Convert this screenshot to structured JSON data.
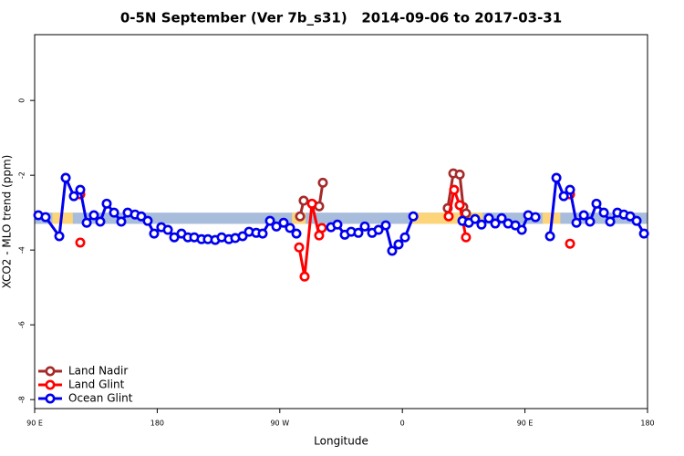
{
  "chart_data": {
    "type": "line",
    "title": "0-5N September (Ver 7b_s31)   2014-09-06 to 2017-03-31",
    "x_label": "Longitude",
    "y_label": "XCO2 - MLO trend (ppm)",
    "xlim": [
      90,
      540
    ],
    "ylim": [
      -8.24,
      1.76
    ],
    "xticks": [
      {
        "value": 90,
        "label": "90 E"
      },
      180,
      {
        "value": 270,
        "label": "90 W"
      },
      {
        "value": 360,
        "label": "0"
      },
      {
        "value": 450,
        "label": "90 E"
      },
      {
        "value": 540,
        "label": "180"
      }
    ],
    "yticks": [
      -8,
      -6,
      -4,
      -2,
      0
    ],
    "grid": false,
    "legend": "bottom-left",
    "band": {
      "range": [
        -3.0,
        -3.3
      ],
      "color": "#a8bcdc"
    },
    "highlight": {
      "color": "#fcd57a",
      "spans": [
        [
          103,
          118
        ],
        [
          279,
          289
        ],
        [
          366,
          419
        ],
        [
          463,
          476
        ]
      ]
    },
    "series": [
      {
        "name": "Land Nadir",
        "color": "#a52a2a",
        "x": [
          284.9,
          287.5,
          294.2,
          298.9,
          301.6,
          null,
          393.3,
          397.4,
          402.1,
          404.7,
          406.7
        ],
        "values": [
          -3.1,
          -2.68,
          -2.78,
          -2.83,
          -2.2,
          null,
          -2.88,
          -1.95,
          -1.98,
          -2.85,
          -3.02
        ]
      },
      {
        "name": "Land Glint",
        "color": "#ff0000",
        "x": [
          123.5,
          null,
          123.5,
          null,
          284.2,
          288.2,
          293.6,
          298.9,
          300.9,
          null,
          394.0,
          398.0,
          402.1,
          406.7,
          null,
          483.1,
          null,
          483.1
        ],
        "values": [
          -2.51,
          null,
          -3.8,
          null,
          -3.93,
          -4.71,
          -2.76,
          -3.61,
          -3.41,
          null,
          -3.1,
          -2.39,
          -2.8,
          -3.66,
          null,
          -2.51,
          null,
          -3.83
        ]
      },
      {
        "name": "Ocean Glint",
        "color": "#0000ee",
        "x": [
          92.7,
          98.0,
          108.1,
          112.8,
          118.8,
          123.5,
          128.2,
          133.5,
          138.2,
          142.9,
          148.3,
          153.6,
          158.3,
          163.7,
          168.3,
          173.0,
          177.7,
          183.0,
          187.8,
          192.5,
          197.8,
          202.5,
          207.2,
          212.5,
          217.2,
          222.6,
          227.3,
          232.6,
          237.3,
          242.7,
          247.4,
          252.7,
          257.4,
          262.8,
          267.5,
          272.8,
          277.5,
          282.2,
          null,
          307.6,
          312.3,
          317.7,
          322.4,
          327.7,
          332.4,
          337.8,
          342.5,
          347.8,
          352.5,
          357.2,
          361.9,
          368.0,
          null,
          404.1,
          408.8,
          413.4,
          418.1,
          423.5,
          428.2,
          432.9,
          437.6,
          443.0,
          447.7,
          452.4,
          457.7,
          null,
          468.4,
          473.1,
          478.5,
          483.1,
          487.8,
          493.2,
          497.8,
          502.5,
          507.9,
          512.6,
          517.9,
          522.6,
          527.3,
          532.0,
          537.4
        ],
        "values": [
          -3.07,
          -3.12,
          -3.63,
          -2.07,
          -2.56,
          -2.39,
          -3.27,
          -3.07,
          -3.24,
          -2.76,
          -3.0,
          -3.24,
          -3.0,
          -3.05,
          -3.1,
          -3.22,
          -3.56,
          -3.39,
          -3.46,
          -3.66,
          -3.56,
          -3.66,
          -3.66,
          -3.71,
          -3.71,
          -3.73,
          -3.66,
          -3.71,
          -3.68,
          -3.63,
          -3.51,
          -3.54,
          -3.56,
          -3.22,
          -3.37,
          -3.27,
          -3.41,
          -3.56,
          null,
          -3.39,
          -3.32,
          -3.59,
          -3.51,
          -3.54,
          -3.37,
          -3.54,
          -3.46,
          -3.34,
          -4.02,
          -3.85,
          -3.66,
          -3.1,
          null,
          -3.22,
          -3.27,
          -3.17,
          -3.32,
          -3.15,
          -3.29,
          -3.15,
          -3.29,
          -3.34,
          -3.46,
          -3.07,
          -3.12,
          null,
          -3.63,
          -2.07,
          -2.56,
          -2.39,
          -3.27,
          -3.07,
          -3.24,
          -2.76,
          -3.0,
          -3.24,
          -3.0,
          -3.05,
          -3.1,
          -3.22,
          -3.56
        ]
      }
    ]
  }
}
